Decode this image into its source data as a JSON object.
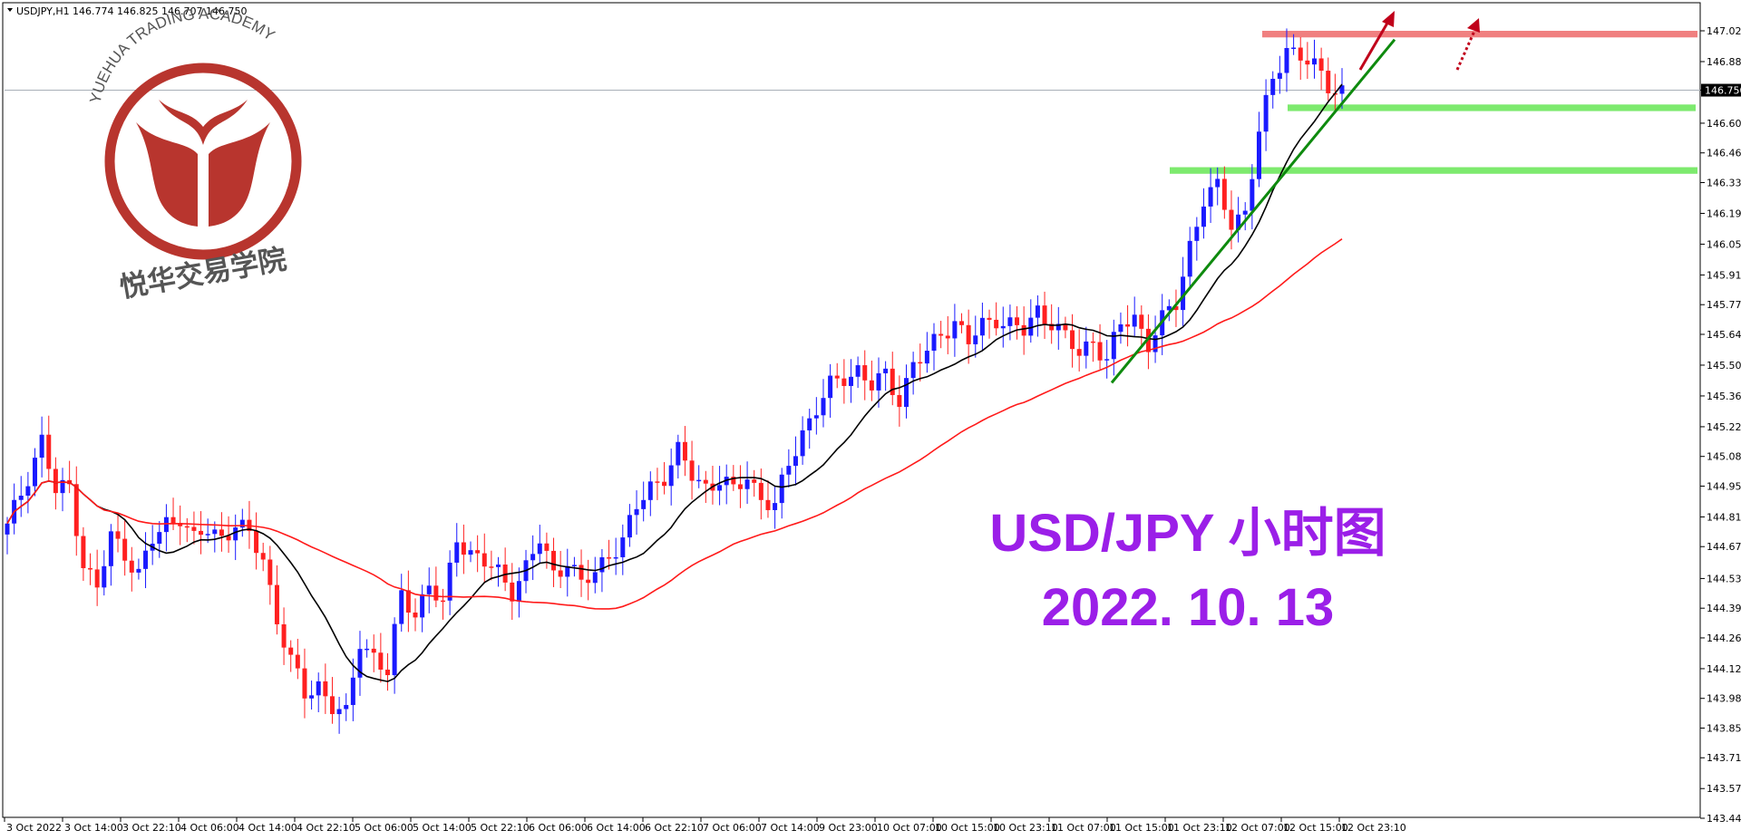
{
  "header": {
    "symbol": "USDJPY,H1",
    "quote": "146.774 146.825 146.707 146.750"
  },
  "logo": {
    "arc_text": "YUEHUA TRADING ACADEMY",
    "cn_text": "悦华交易学院"
  },
  "annotation": {
    "line1": "USD/JPY 小时图",
    "line2": "2022. 10. 13"
  },
  "current_price_label": "146.750",
  "colors": {
    "bull": "#1a1aff",
    "bear": "#ff2020",
    "ma_fast": "#000000",
    "ma_slow": "#ff1a1a",
    "resistance_zone": "#f08080",
    "support_zone": "#7dea6e",
    "trendline": "#0e8a0e",
    "arrow": "#c0001a",
    "annotation_text": "#9b1fe8"
  },
  "chart_data": {
    "type": "candlestick",
    "title": "",
    "ylim": [
      143.44,
      147.12
    ],
    "y_ticks": [
      "147.020",
      "146.880",
      "146.750",
      "146.600",
      "146.465",
      "146.330",
      "146.190",
      "146.050",
      "145.910",
      "145.775",
      "145.640",
      "145.500",
      "145.360",
      "145.220",
      "145.085",
      "144.950",
      "144.810",
      "144.675",
      "144.530",
      "144.395",
      "144.260",
      "144.120",
      "143.985",
      "143.850",
      "143.715",
      "143.575",
      "143.440"
    ],
    "x_ticks": [
      "3 Oct 2022",
      "3 Oct 14:00",
      "3 Oct 22:10",
      "4 Oct 06:00",
      "4 Oct 14:00",
      "4 Oct 22:10",
      "5 Oct 06:00",
      "5 Oct 14:00",
      "5 Oct 22:10",
      "6 Oct 06:00",
      "6 Oct 14:00",
      "6 Oct 22:10",
      "7 Oct 06:00",
      "7 Oct 14:00",
      "9 Oct 23:00",
      "10 Oct 07:00",
      "10 Oct 15:00",
      "10 Oct 23:10",
      "11 Oct 07:00",
      "11 Oct 15:00",
      "11 Oct 23:10",
      "12 Oct 07:00",
      "12 Oct 15:00",
      "12 Oct 23:10"
    ],
    "anchors": [
      [
        0,
        144.76
      ],
      [
        3,
        145.0
      ],
      [
        5,
        145.16
      ],
      [
        7,
        144.92
      ],
      [
        9,
        144.95
      ],
      [
        11,
        144.6
      ],
      [
        13,
        144.48
      ],
      [
        15,
        144.72
      ],
      [
        17,
        144.65
      ],
      [
        19,
        144.55
      ],
      [
        21,
        144.7
      ],
      [
        23,
        144.78
      ],
      [
        25,
        144.82
      ],
      [
        27,
        144.7
      ],
      [
        29,
        144.75
      ],
      [
        31,
        144.72
      ],
      [
        33,
        144.78
      ],
      [
        35,
        144.72
      ],
      [
        37,
        144.62
      ],
      [
        39,
        144.35
      ],
      [
        41,
        144.15
      ],
      [
        43,
        144.0
      ],
      [
        45,
        144.05
      ],
      [
        47,
        143.95
      ],
      [
        49,
        143.9
      ],
      [
        51,
        144.25
      ],
      [
        53,
        144.18
      ],
      [
        55,
        144.1
      ],
      [
        57,
        144.45
      ],
      [
        59,
        144.38
      ],
      [
        61,
        144.5
      ],
      [
        63,
        144.4
      ],
      [
        65,
        144.72
      ],
      [
        67,
        144.65
      ],
      [
        69,
        144.6
      ],
      [
        71,
        144.55
      ],
      [
        73,
        144.48
      ],
      [
        75,
        144.58
      ],
      [
        77,
        144.7
      ],
      [
        79,
        144.55
      ],
      [
        81,
        144.62
      ],
      [
        83,
        144.5
      ],
      [
        85,
        144.55
      ],
      [
        87,
        144.65
      ],
      [
        89,
        144.7
      ],
      [
        91,
        144.85
      ],
      [
        93,
        144.95
      ],
      [
        95,
        145.0
      ],
      [
        97,
        145.1
      ],
      [
        99,
        145.0
      ],
      [
        101,
        144.95
      ],
      [
        103,
        144.98
      ],
      [
        105,
        144.92
      ],
      [
        107,
        145.0
      ],
      [
        109,
        144.9
      ],
      [
        111,
        144.85
      ],
      [
        113,
        145.05
      ],
      [
        115,
        145.2
      ],
      [
        117,
        145.3
      ],
      [
        119,
        145.4
      ],
      [
        121,
        145.45
      ],
      [
        123,
        145.48
      ],
      [
        125,
        145.4
      ],
      [
        127,
        145.45
      ],
      [
        129,
        145.35
      ],
      [
        131,
        145.5
      ],
      [
        133,
        145.55
      ],
      [
        135,
        145.65
      ],
      [
        137,
        145.7
      ],
      [
        139,
        145.6
      ],
      [
        141,
        145.68
      ],
      [
        143,
        145.72
      ],
      [
        145,
        145.68
      ],
      [
        147,
        145.65
      ],
      [
        149,
        145.75
      ],
      [
        151,
        145.7
      ],
      [
        153,
        145.62
      ],
      [
        155,
        145.55
      ],
      [
        157,
        145.62
      ],
      [
        159,
        145.52
      ],
      [
        161,
        145.68
      ],
      [
        163,
        145.72
      ],
      [
        165,
        145.6
      ],
      [
        167,
        145.7
      ],
      [
        169,
        145.78
      ],
      [
        171,
        146.05
      ],
      [
        173,
        146.25
      ],
      [
        175,
        146.3
      ],
      [
        177,
        146.15
      ],
      [
        179,
        146.2
      ],
      [
        181,
        146.55
      ],
      [
        183,
        146.8
      ],
      [
        185,
        146.95
      ],
      [
        187,
        146.9
      ],
      [
        189,
        146.85
      ],
      [
        191,
        146.78
      ],
      [
        193,
        146.75
      ]
    ],
    "ma_fast": {
      "period": 14,
      "color": "#000000"
    },
    "ma_slow": {
      "period": 50,
      "color": "#ff1a1a"
    },
    "zones": [
      {
        "name": "resistance",
        "from_price": 146.99,
        "to_price": 147.02,
        "color": "#f08080"
      },
      {
        "name": "support-upper",
        "from_price": 146.655,
        "to_price": 146.685,
        "color": "#7dea6e"
      },
      {
        "name": "support-lower",
        "from_price": 146.37,
        "to_price": 146.4,
        "color": "#7dea6e"
      }
    ],
    "current_price": 146.75
  }
}
